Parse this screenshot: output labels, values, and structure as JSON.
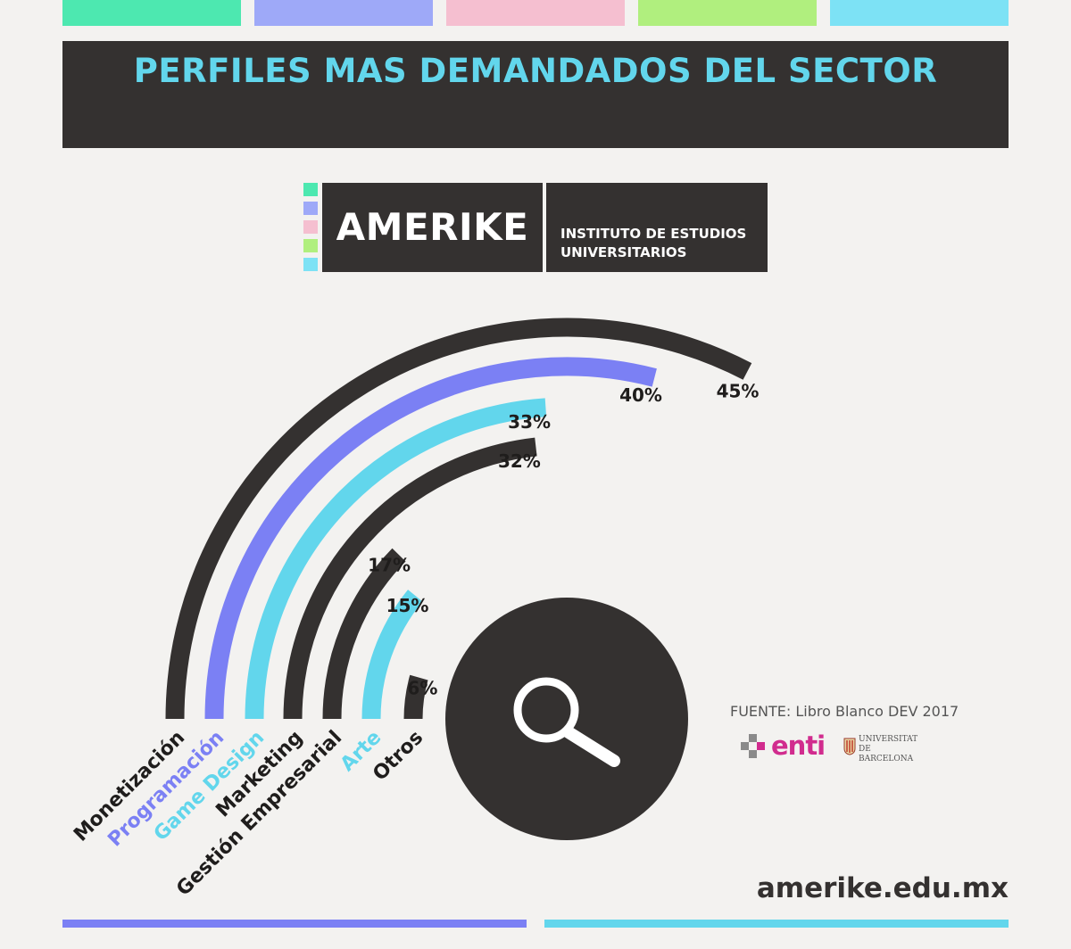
{
  "top_bars": [
    {
      "name": "top-bar-green",
      "color": "#4de8b0"
    },
    {
      "name": "top-bar-violet",
      "color": "#9ea9f8"
    },
    {
      "name": "top-bar-pink",
      "color": "#f5bfd0"
    },
    {
      "name": "top-bar-lime",
      "color": "#b0ef7e"
    },
    {
      "name": "top-bar-cyan",
      "color": "#7de2f5"
    }
  ],
  "title": "PERFILES MAS DEMANDADOS DEL SECTOR",
  "logo": {
    "name": "AMERIKE",
    "subtitle_line1": "INSTITUTO DE ESTUDIOS",
    "subtitle_line2": "UNIVERSITARIOS",
    "squares": [
      "#4de8b0",
      "#9ea9f8",
      "#f5bfd0",
      "#b0ef7e",
      "#7de2f5"
    ]
  },
  "chart_data": {
    "type": "radial-bar",
    "unit": "%",
    "categories": [
      "Monetización",
      "Programación",
      "Game Design",
      "Marketing",
      "Gestión Empresarial",
      "Arte",
      "Otros"
    ],
    "values": [
      45,
      40,
      33,
      32,
      17,
      15,
      6
    ],
    "value_labels": [
      "45%",
      "40%",
      "33%",
      "32%",
      "17%",
      "15%",
      "6%"
    ],
    "colors": [
      "#343130",
      "#7b80f4",
      "#62d6ec",
      "#343130",
      "#343130",
      "#62d6ec",
      "#343130"
    ],
    "label_colors": [
      "#1f1d1c",
      "#7b80f4",
      "#62d6ec",
      "#1f1d1c",
      "#1f1d1c",
      "#62d6ec",
      "#1f1d1c"
    ],
    "center_icon": "magnifier-icon"
  },
  "source": "FUENTE: Libro Blanco DEV 2017",
  "partners": {
    "enti": "enti",
    "ub_line1": "UNIVERSITAT DE",
    "ub_line2": "BARCELONA",
    "enti_colors": [
      "#8a8a8a",
      "#d12c8e"
    ]
  },
  "website": "amerike.edu.mx",
  "bottom_lines": [
    {
      "name": "bottom-line-violet",
      "color": "#7b80f4"
    },
    {
      "name": "bottom-line-cyan",
      "color": "#62d6ec"
    }
  ]
}
